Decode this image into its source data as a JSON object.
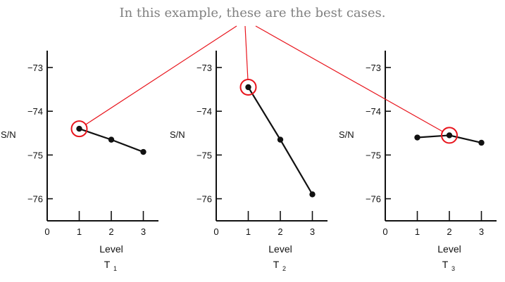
{
  "caption": "In this example, these are the best cases.",
  "colors": {
    "highlight": "#e8141c",
    "caption": "#808080",
    "ink": "#111111"
  },
  "chart_data": [
    {
      "type": "line",
      "ylabel": "S/N",
      "xlabel": "Level",
      "subtitle": "T",
      "subtitle_subscript": "1",
      "x": [
        1,
        2,
        3
      ],
      "values": [
        -74.4,
        -74.65,
        -74.93
      ],
      "xticks": [
        0,
        1,
        2,
        3
      ],
      "yticks": [
        -73,
        -74,
        -75,
        -76
      ],
      "ytick_labels": [
        "−73",
        "−74",
        "−75",
        "−76"
      ],
      "highlight_index": 0
    },
    {
      "type": "line",
      "ylabel": "S/N",
      "xlabel": "Level",
      "subtitle": "T",
      "subtitle_subscript": "2",
      "x": [
        1,
        2,
        3
      ],
      "values": [
        -73.45,
        -74.65,
        -75.9
      ],
      "xticks": [
        0,
        1,
        2,
        3
      ],
      "yticks": [
        -73,
        -74,
        -75,
        -76
      ],
      "ytick_labels": [
        "−73",
        "−74",
        "−75",
        "−76"
      ],
      "highlight_index": 0
    },
    {
      "type": "line",
      "ylabel": "S/N",
      "xlabel": "Level",
      "subtitle": "T",
      "subtitle_subscript": "3",
      "x": [
        1,
        2,
        3
      ],
      "values": [
        -74.6,
        -74.55,
        -74.72
      ],
      "xticks": [
        0,
        1,
        2,
        3
      ],
      "yticks": [
        -73,
        -74,
        -75,
        -76
      ],
      "ytick_labels": [
        "−73",
        "−74",
        "−75",
        "−76"
      ],
      "highlight_index": 1
    }
  ]
}
